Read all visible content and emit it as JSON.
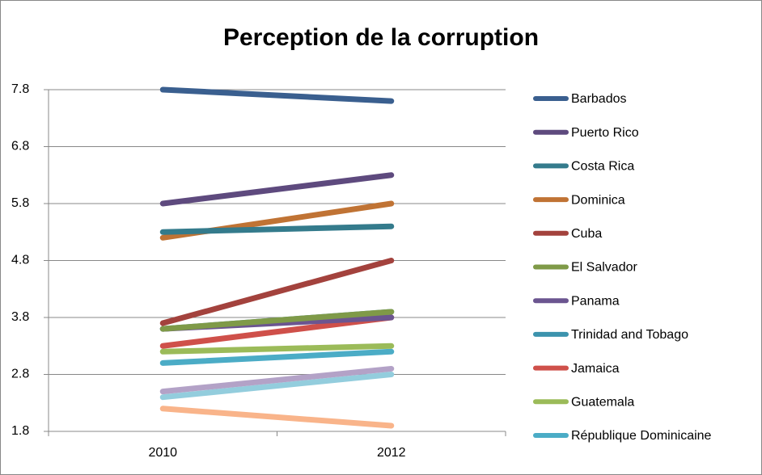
{
  "chart_data": {
    "type": "line",
    "title": "Perception de la corruption",
    "categories": [
      "2010",
      "2012"
    ],
    "ylim": [
      1.8,
      7.8
    ],
    "yticks": [
      1.8,
      2.8,
      3.8,
      4.8,
      5.8,
      6.8,
      7.8
    ],
    "grid": true,
    "legend": "right",
    "series": [
      {
        "name": "Barbados",
        "color": "#3a5f8f",
        "values": [
          7.8,
          7.6
        ]
      },
      {
        "name": "Puerto Rico",
        "color": "#5e4a7e",
        "values": [
          5.8,
          6.3
        ]
      },
      {
        "name": "Costa Rica",
        "color": "#347b8c",
        "values": [
          5.3,
          5.4
        ]
      },
      {
        "name": "Dominica",
        "color": "#c07334",
        "values": [
          5.2,
          5.8
        ]
      },
      {
        "name": "Cuba",
        "color": "#a3423d",
        "values": [
          3.7,
          4.8
        ]
      },
      {
        "name": "El Salvador",
        "color": "#7f9a48",
        "values": [
          3.6,
          3.9
        ]
      },
      {
        "name": "Panama",
        "color": "#6b5590",
        "values": [
          3.6,
          3.8
        ]
      },
      {
        "name": "Trinidad and Tobago",
        "color": "#3c93ad",
        "values": [
          3.6,
          3.9
        ]
      },
      {
        "name": "Jamaica",
        "color": "#cf504a",
        "values": [
          3.3,
          3.8
        ]
      },
      {
        "name": "Guatemala",
        "color": "#9bbb59",
        "values": [
          3.2,
          3.3
        ]
      },
      {
        "name": "République Dominicaine",
        "color": "#4bacc6",
        "values": [
          3.0,
          3.2
        ]
      },
      {
        "color": "#b3a2c7",
        "values": [
          2.5,
          2.9
        ]
      },
      {
        "color": "#93cddd",
        "values": [
          2.4,
          2.8
        ]
      },
      {
        "color": "#f9b48a",
        "values": [
          2.2,
          1.9
        ]
      }
    ]
  }
}
